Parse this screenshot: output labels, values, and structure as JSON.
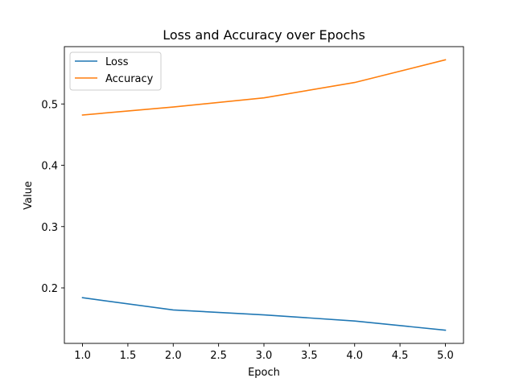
{
  "chart_data": {
    "type": "line",
    "title": "Loss and Accuracy over Epochs",
    "xlabel": "Epoch",
    "ylabel": "Value",
    "x": [
      1,
      2,
      3,
      4,
      5
    ],
    "series": [
      {
        "name": "Loss",
        "color": "#1f77b4",
        "values": [
          0.184,
          0.164,
          0.156,
          0.146,
          0.131
        ]
      },
      {
        "name": "Accuracy",
        "color": "#ff7f0e",
        "values": [
          0.482,
          0.495,
          0.51,
          0.535,
          0.572
        ]
      }
    ],
    "xlim": [
      0.8,
      5.2
    ],
    "ylim": [
      0.1095,
      0.5935
    ],
    "xticks": [
      1.0,
      1.5,
      2.0,
      2.5,
      3.0,
      3.5,
      4.0,
      4.5,
      5.0
    ],
    "xtick_labels": [
      "1.0",
      "1.5",
      "2.0",
      "2.5",
      "3.0",
      "3.5",
      "4.0",
      "4.5",
      "5.0"
    ],
    "yticks": [
      0.2,
      0.3,
      0.4,
      0.5
    ],
    "ytick_labels": [
      "0.2",
      "0.3",
      "0.4",
      "0.5"
    ],
    "legend_position": "top-left",
    "grid": false
  }
}
